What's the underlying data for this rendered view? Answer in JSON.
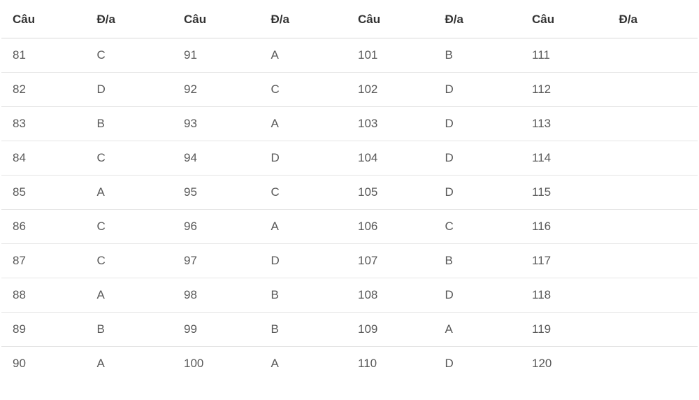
{
  "table": {
    "type": "table",
    "background_color": "#ffffff",
    "border_color": "#e5e5e5",
    "header_border_color": "#d8d8d8",
    "header_text_color": "#333333",
    "cell_text_color": "#595959",
    "header_font_weight": 700,
    "cell_font_weight": 400,
    "font_size": 17,
    "columns": [
      "Câu",
      "Đ/a",
      "Câu",
      "Đ/a",
      "Câu",
      "Đ/a",
      "Câu",
      "Đ/a"
    ],
    "rows": [
      [
        "81",
        "C",
        "91",
        "A",
        "101",
        "B",
        "111",
        ""
      ],
      [
        "82",
        "D",
        "92",
        "C",
        "102",
        "D",
        "112",
        ""
      ],
      [
        "83",
        "B",
        "93",
        "A",
        "103",
        "D",
        "113",
        ""
      ],
      [
        "84",
        "C",
        "94",
        "D",
        "104",
        "D",
        "114",
        ""
      ],
      [
        "85",
        "A",
        "95",
        "C",
        "105",
        "D",
        "115",
        ""
      ],
      [
        "86",
        "C",
        "96",
        "A",
        "106",
        "C",
        "116",
        ""
      ],
      [
        "87",
        "C",
        "97",
        "D",
        "107",
        "B",
        "117",
        ""
      ],
      [
        "88",
        "A",
        "98",
        "B",
        "108",
        "D",
        "118",
        ""
      ],
      [
        "89",
        "B",
        "99",
        "B",
        "109",
        "A",
        "119",
        ""
      ],
      [
        "90",
        "A",
        "100",
        "A",
        "110",
        "D",
        "120",
        ""
      ]
    ]
  }
}
